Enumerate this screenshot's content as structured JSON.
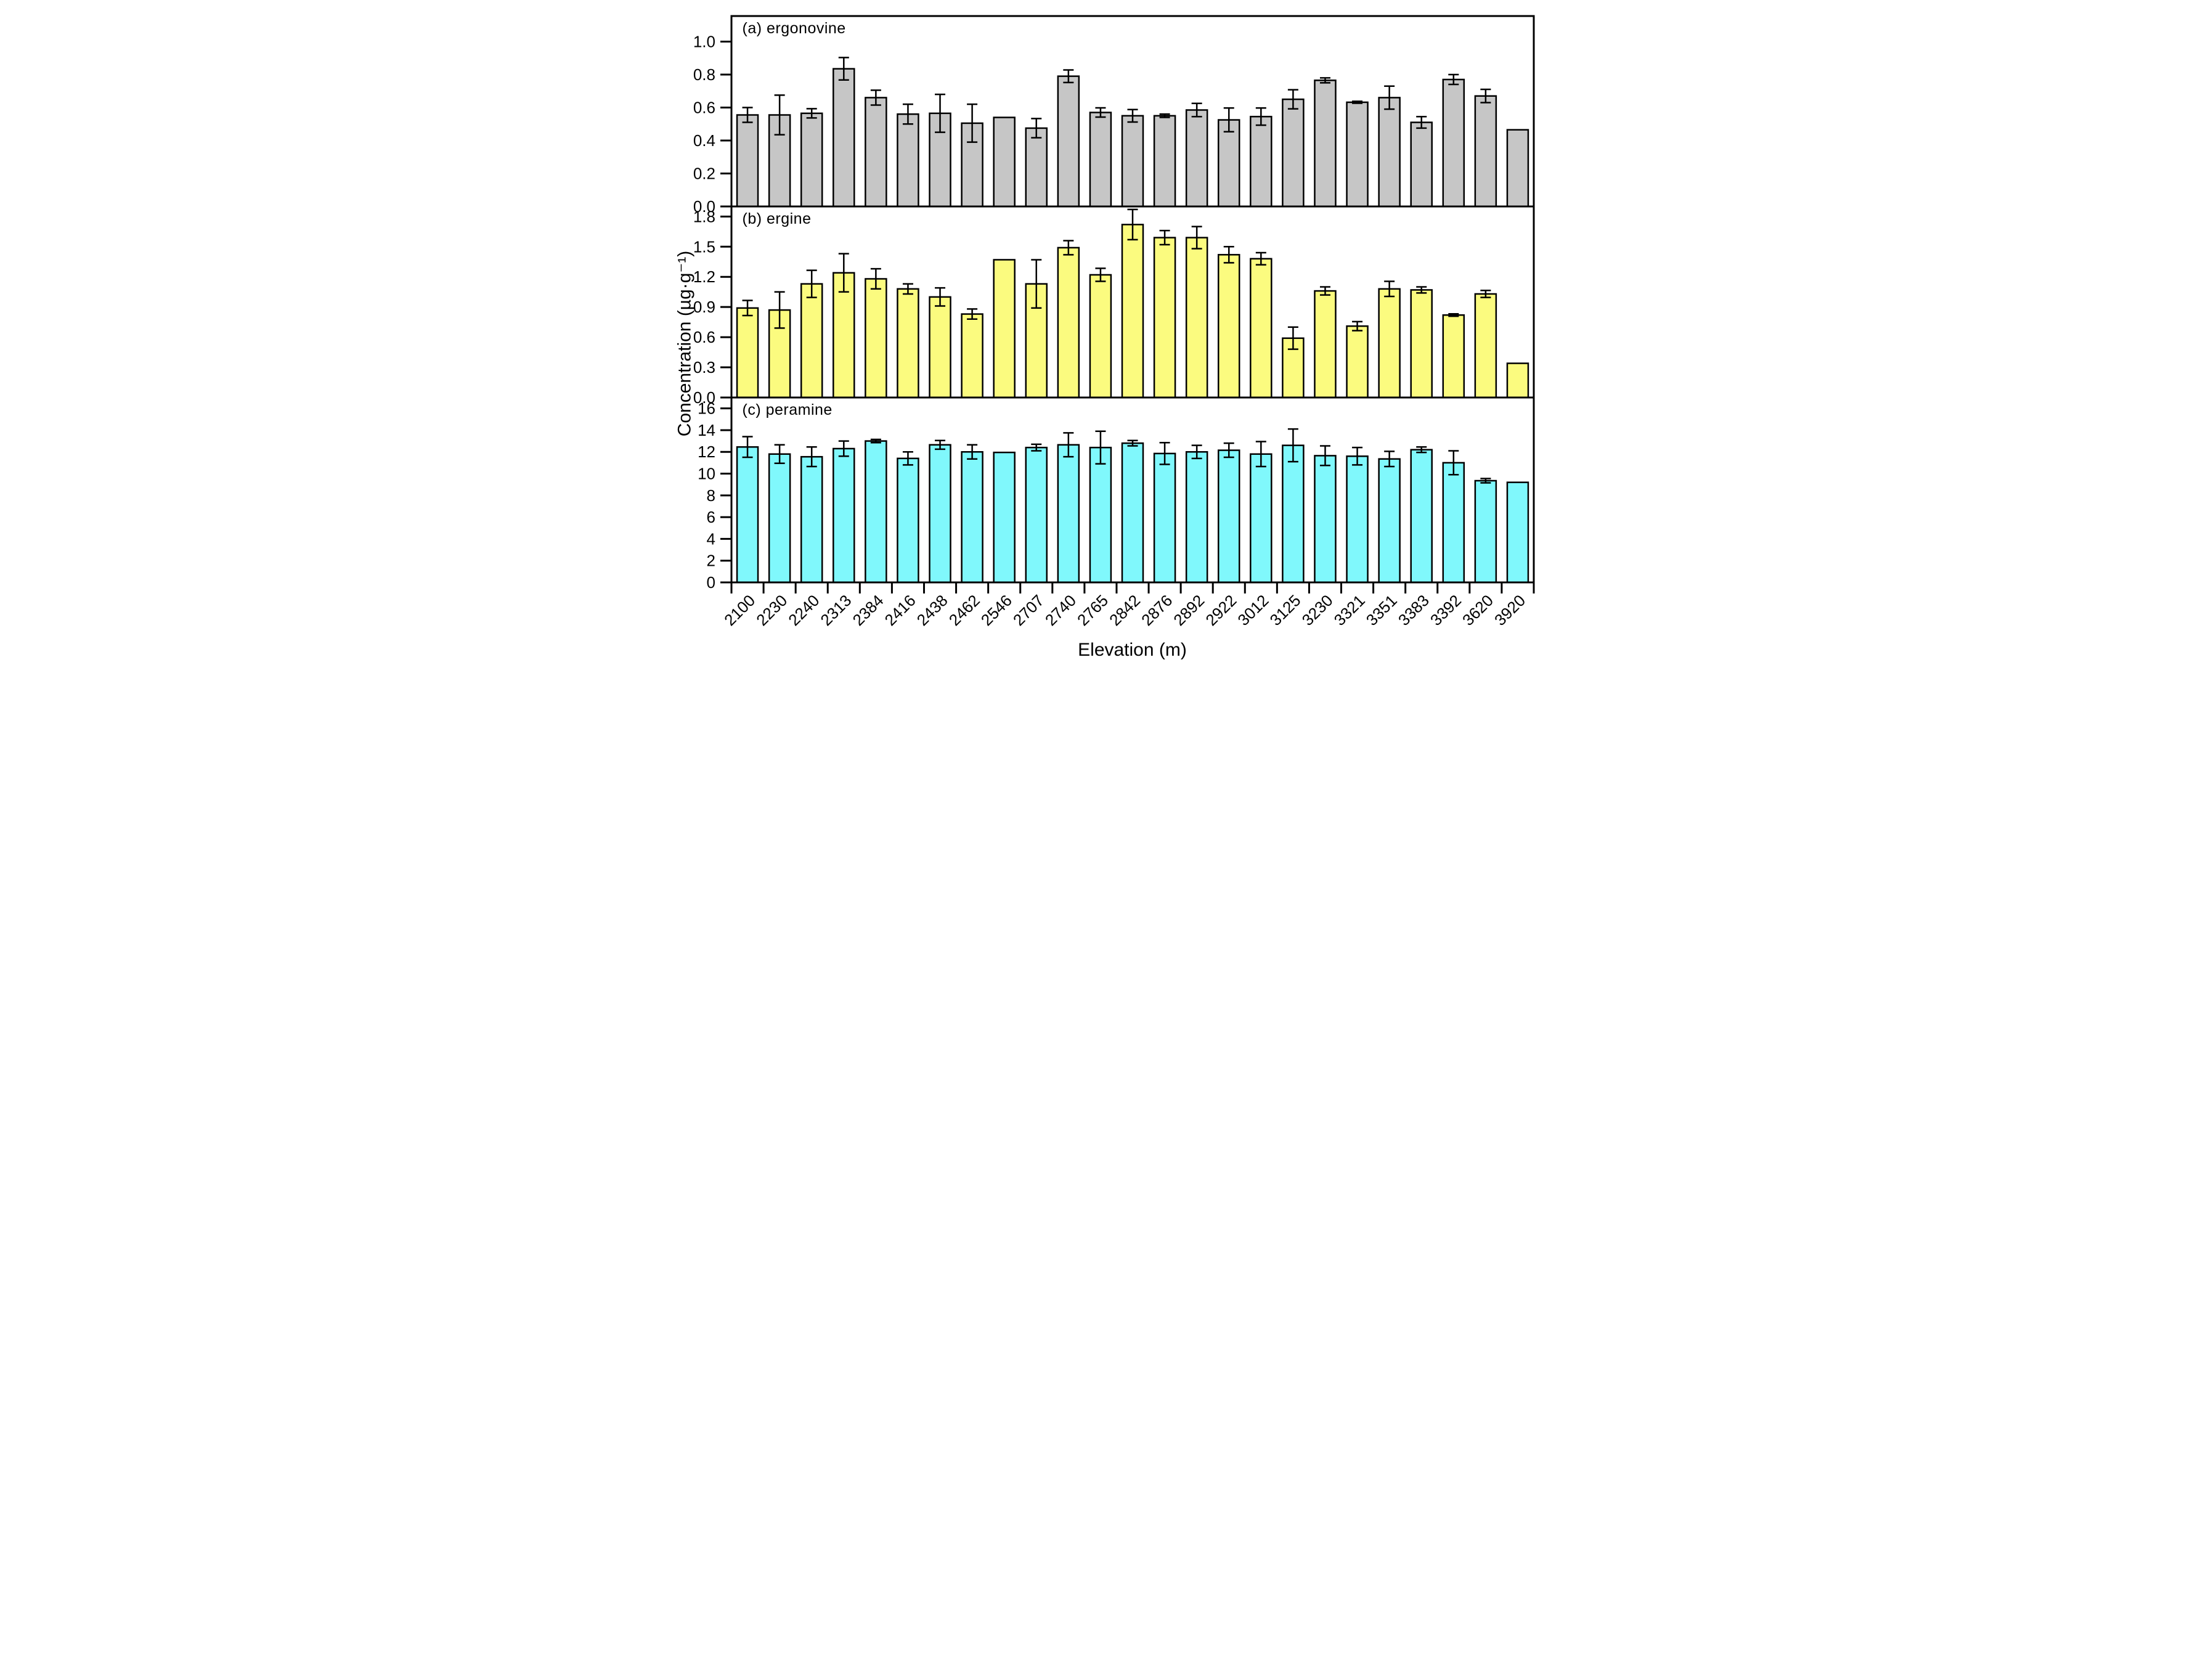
{
  "figure": {
    "x_axis_title": "Elevation (m)",
    "y_axis_title": "Concentration (µg·g⁻¹)",
    "background_color": "#ffffff",
    "axis_color": "#000000"
  },
  "categories": [
    "2100",
    "2230",
    "2240",
    "2313",
    "2384",
    "2416",
    "2438",
    "2462",
    "2546",
    "2707",
    "2740",
    "2765",
    "2842",
    "2876",
    "2892",
    "2922",
    "3012",
    "3125",
    "3230",
    "3321",
    "3351",
    "3383",
    "3392",
    "3620",
    "3920"
  ],
  "chart_data": [
    {
      "type": "bar",
      "panel": "a",
      "title": "(a) ergonovine",
      "bar_color": "#c6c6c6",
      "ylabel": "Concentration (µg·g⁻¹)",
      "ylim": [
        0,
        1.155
      ],
      "yticks": [
        "0.0",
        "0.2",
        "0.4",
        "0.6",
        "0.8",
        "1.0"
      ],
      "error_bars": true,
      "values": [
        0.555,
        0.555,
        0.565,
        0.835,
        0.66,
        0.56,
        0.565,
        0.505,
        0.54,
        0.475,
        0.79,
        0.57,
        0.55,
        0.55,
        0.585,
        0.525,
        0.545,
        0.65,
        0.765,
        0.632,
        0.66,
        0.51,
        0.77,
        0.67,
        0.465
      ],
      "errors": [
        0.045,
        0.12,
        0.028,
        0.068,
        0.045,
        0.06,
        0.115,
        0.115,
        null,
        0.058,
        0.038,
        0.028,
        0.038,
        0.01,
        0.04,
        0.072,
        0.052,
        0.058,
        0.015,
        0.006,
        0.07,
        0.035,
        0.03,
        0.04,
        null
      ]
    },
    {
      "type": "bar",
      "panel": "b",
      "title": "(b) ergine",
      "bar_color": "#fbfb7f",
      "ylabel": "Concentration (µg·g⁻¹)",
      "ylim": [
        0,
        1.9
      ],
      "yticks": [
        "0.0",
        "0.3",
        "0.6",
        "0.9",
        "1.2",
        "1.5",
        "1.8"
      ],
      "error_bars": true,
      "values": [
        0.89,
        0.87,
        1.13,
        1.24,
        1.18,
        1.08,
        1.0,
        0.83,
        1.37,
        1.13,
        1.49,
        1.22,
        1.72,
        1.59,
        1.59,
        1.42,
        1.38,
        0.59,
        1.06,
        0.71,
        1.08,
        1.07,
        0.82,
        1.03,
        0.34
      ],
      "errors": [
        0.075,
        0.18,
        0.135,
        0.19,
        0.1,
        0.05,
        0.09,
        0.05,
        null,
        0.24,
        0.07,
        0.065,
        0.15,
        0.07,
        0.11,
        0.08,
        0.06,
        0.11,
        0.04,
        0.045,
        0.075,
        0.03,
        0.012,
        0.035,
        null
      ]
    },
    {
      "type": "bar",
      "panel": "c",
      "title": "(c) peramine",
      "bar_color": "#80f8fc",
      "ylabel": "Concentration (µg·g⁻¹)",
      "ylim": [
        0,
        17
      ],
      "yticks": [
        "0",
        "2",
        "4",
        "6",
        "8",
        "10",
        "12",
        "14",
        "16"
      ],
      "error_bars": true,
      "values": [
        12.45,
        11.8,
        11.55,
        12.3,
        13.0,
        11.4,
        12.65,
        12.0,
        11.95,
        12.4,
        12.65,
        12.4,
        12.8,
        11.85,
        12.0,
        12.15,
        11.8,
        12.6,
        11.65,
        11.6,
        11.35,
        12.2,
        11.0,
        9.35,
        9.2
      ],
      "errors": [
        0.95,
        0.85,
        0.9,
        0.7,
        0.15,
        0.6,
        0.4,
        0.65,
        null,
        0.3,
        1.1,
        1.5,
        0.25,
        1.0,
        0.6,
        0.65,
        1.15,
        1.5,
        0.9,
        0.8,
        0.7,
        0.25,
        1.1,
        0.2,
        null
      ]
    }
  ]
}
